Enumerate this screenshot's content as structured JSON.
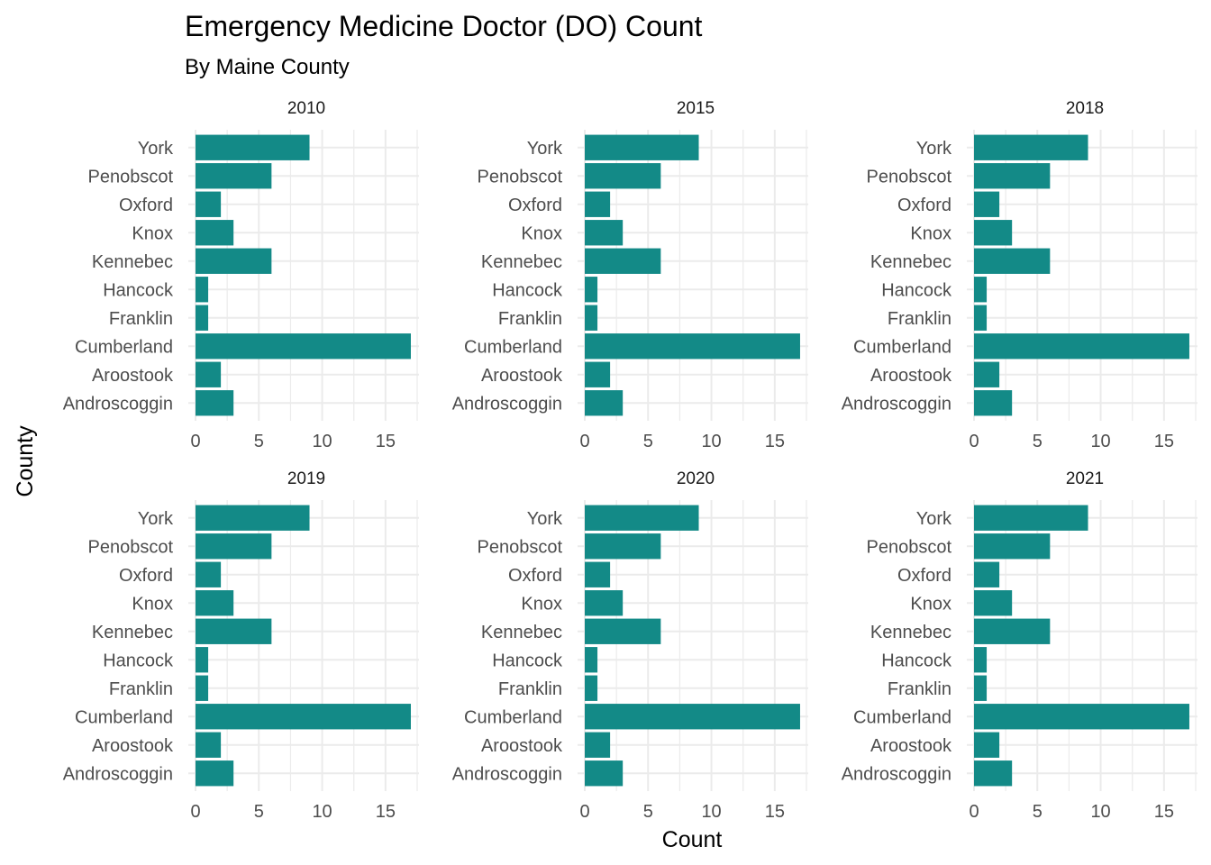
{
  "chart_data": {
    "type": "bar",
    "orientation": "horizontal",
    "title": "Emergency Medicine Doctor (DO) Count",
    "subtitle": "By Maine County",
    "xlabel": "Count",
    "ylabel": "County",
    "xlim": [
      0,
      17.5
    ],
    "x_ticks": [
      0,
      5,
      10,
      15
    ],
    "grid": true,
    "bar_color": "#138A87",
    "grid_color": "#EBEBEB",
    "categories": [
      "York",
      "Penobscot",
      "Oxford",
      "Knox",
      "Kennebec",
      "Hancock",
      "Franklin",
      "Cumberland",
      "Aroostook",
      "Androscoggin"
    ],
    "facets": [
      {
        "label": "2010",
        "values": [
          9,
          6,
          2,
          3,
          6,
          1,
          1,
          17,
          2,
          3
        ]
      },
      {
        "label": "2015",
        "values": [
          9,
          6,
          2,
          3,
          6,
          1,
          1,
          17,
          2,
          3
        ]
      },
      {
        "label": "2018",
        "values": [
          9,
          6,
          2,
          3,
          6,
          1,
          1,
          17,
          2,
          3
        ]
      },
      {
        "label": "2019",
        "values": [
          9,
          6,
          2,
          3,
          6,
          1,
          1,
          17,
          2,
          3
        ]
      },
      {
        "label": "2020",
        "values": [
          9,
          6,
          2,
          3,
          6,
          1,
          1,
          17,
          2,
          3
        ]
      },
      {
        "label": "2021",
        "values": [
          9,
          6,
          2,
          3,
          6,
          1,
          1,
          17,
          2,
          3
        ]
      }
    ]
  }
}
